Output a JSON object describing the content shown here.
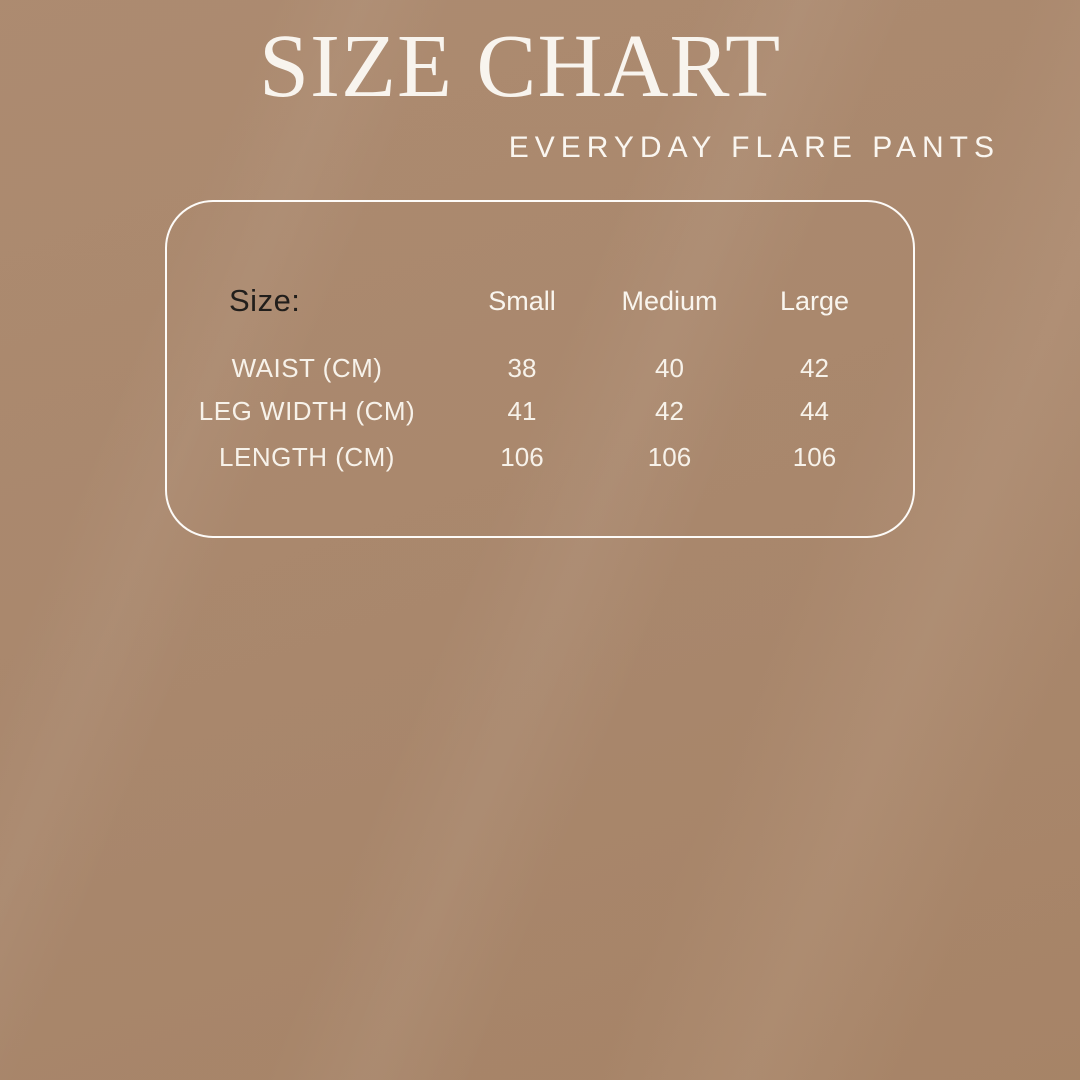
{
  "header": {
    "title": "SIZE CHART",
    "subtitle": "EVERYDAY FLARE PANTS"
  },
  "chart_data": {
    "type": "table",
    "title": "SIZE CHART",
    "subtitle": "EVERYDAY FLARE PANTS",
    "corner_label": "Size:",
    "columns": [
      "Small",
      "Medium",
      "Large"
    ],
    "rows": [
      {
        "label": "WAIST (CM)",
        "values": [
          "38",
          "40",
          "42"
        ]
      },
      {
        "label": "LEG WIDTH (CM)",
        "values": [
          "41",
          "42",
          "44"
        ]
      },
      {
        "label": "LENGTH (CM)",
        "values": [
          "106",
          "106",
          "106"
        ]
      }
    ],
    "units": "cm",
    "layout": {
      "grid": "off",
      "card_border": "rounded-rectangle"
    }
  },
  "colors": {
    "background": "#ad8b70",
    "card_border": "#fdfbf8",
    "text_light": "#f7f2ea",
    "text_dark": "#211e1b"
  }
}
